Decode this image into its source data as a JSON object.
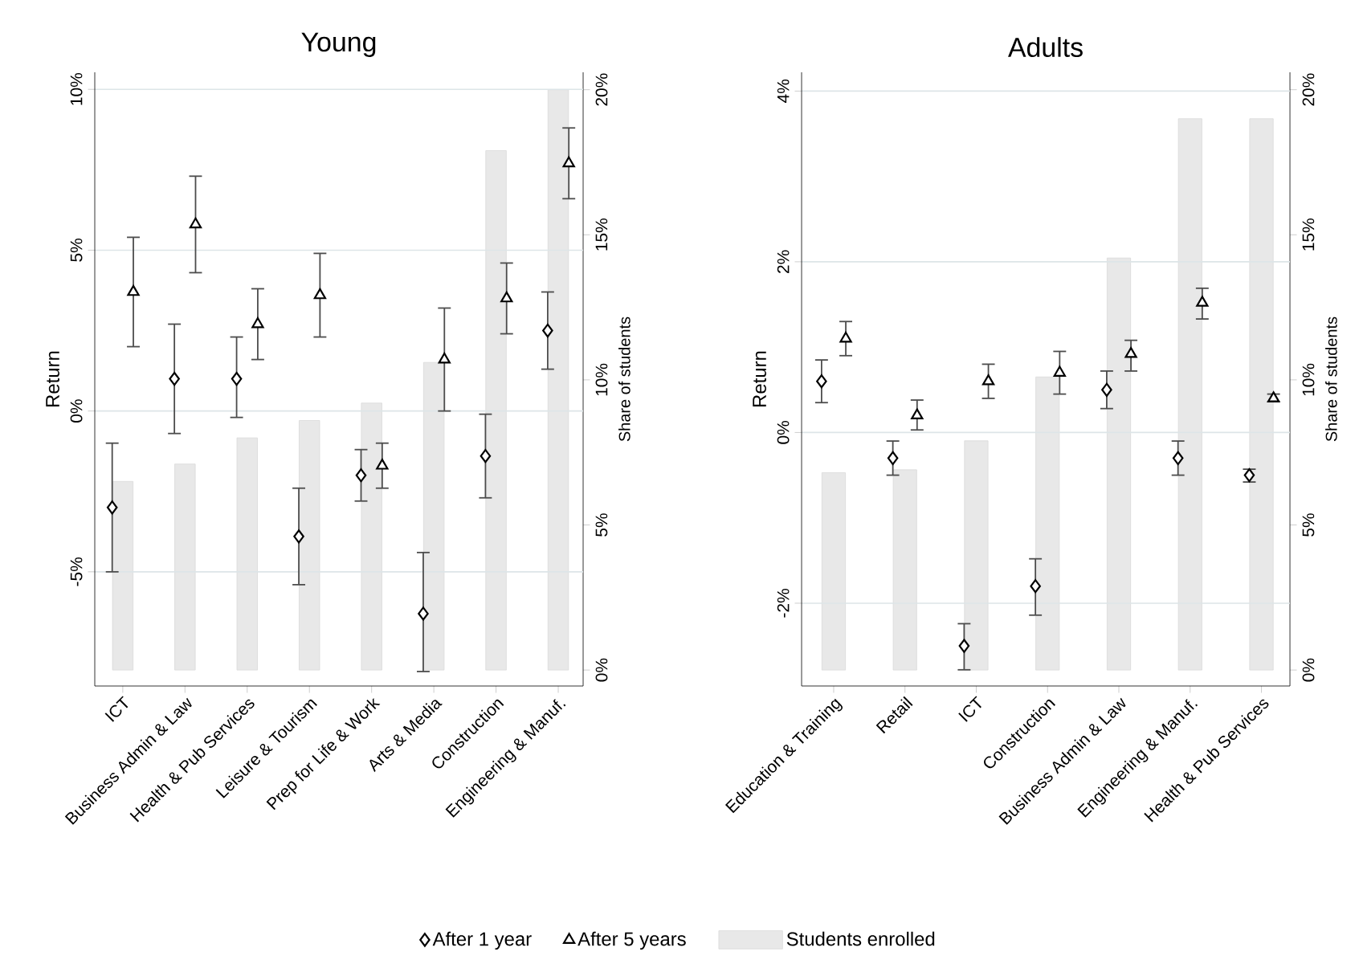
{
  "chart_data": [
    {
      "type": "scatter",
      "title": "Young",
      "ylabel": "Return",
      "y2label": "Share of students",
      "categories": [
        "ICT",
        "Business Admin & Law",
        "Health & Pub Services",
        "Leisure & Tourism",
        "Prep for Life & Work",
        "Arts & Media",
        "Construction",
        "Engineering & Manuf."
      ],
      "ylim": [
        -8.55,
        10.53
      ],
      "yticks": [
        {
          "value": -5,
          "label": "-5%"
        },
        {
          "value": 0,
          "label": "0%"
        },
        {
          "value": 5,
          "label": "5%"
        },
        {
          "value": 10,
          "label": "10%"
        }
      ],
      "y2lim": [
        -0.55,
        20.6
      ],
      "y2ticks": [
        {
          "value": 0,
          "label": "0%"
        },
        {
          "value": 5,
          "label": "5%"
        },
        {
          "value": 10,
          "label": "10%"
        },
        {
          "value": 15,
          "label": "15%"
        },
        {
          "value": 20,
          "label": "20%"
        }
      ],
      "grid": "y",
      "legend": "bottom",
      "series": [
        {
          "name": "After 1 year",
          "color": "#000000",
          "marker": "diamond",
          "values": [
            -3.0,
            1.0,
            1.0,
            -3.9,
            -2.0,
            -6.3,
            -1.4,
            2.5
          ],
          "errors": [
            [
              -5.0,
              -1.0
            ],
            [
              -0.7,
              2.7
            ],
            [
              -0.2,
              2.3
            ],
            [
              -5.4,
              -2.4
            ],
            [
              -2.8,
              -1.2
            ],
            [
              -8.1,
              -4.4
            ],
            [
              -2.7,
              -0.1
            ],
            [
              1.3,
              3.7
            ]
          ]
        },
        {
          "name": "After 5 years",
          "color": "#000000",
          "marker": "triangle",
          "values": [
            3.7,
            5.8,
            2.7,
            3.6,
            -1.7,
            1.6,
            3.5,
            7.7
          ],
          "errors": [
            [
              2.0,
              5.4
            ],
            [
              4.3,
              7.3
            ],
            [
              1.6,
              3.8
            ],
            [
              2.3,
              4.9
            ],
            [
              -2.4,
              -1.0
            ],
            [
              0.0,
              3.2
            ],
            [
              2.4,
              4.6
            ],
            [
              6.6,
              8.8
            ]
          ]
        },
        {
          "name": "Students enrolled",
          "type": "bar",
          "axis": "y2",
          "color": "#e8e8e8",
          "values": [
            6.5,
            7.1,
            8.0,
            8.6,
            9.2,
            10.6,
            17.9,
            20.0
          ]
        }
      ]
    },
    {
      "type": "scatter",
      "title": "Adults",
      "ylabel": "Return",
      "y2label": "Share of students",
      "categories": [
        "Education & Training",
        "Retail",
        "ICT",
        "Construction",
        "Business Admin & Law",
        "Engineering & Manuf.",
        "Health & Pub Services"
      ],
      "ylim": [
        -2.97,
        4.22
      ],
      "yticks": [
        {
          "value": -2,
          "label": "-2%"
        },
        {
          "value": 0,
          "label": "0%"
        },
        {
          "value": 2,
          "label": "2%"
        },
        {
          "value": 4,
          "label": "4%"
        }
      ],
      "y2lim": [
        -0.55,
        20.6
      ],
      "y2ticks": [
        {
          "value": 0,
          "label": "0%"
        },
        {
          "value": 5,
          "label": "5%"
        },
        {
          "value": 10,
          "label": "10%"
        },
        {
          "value": 15,
          "label": "15%"
        },
        {
          "value": 20,
          "label": "20%"
        }
      ],
      "grid": "y",
      "series": [
        {
          "color": "#000000",
          "marker": "diamond",
          "values": [
            0.6,
            -0.3,
            -2.5,
            -1.8,
            0.5,
            -0.3,
            -0.5
          ],
          "errors": [
            [
              0.35,
              0.85
            ],
            [
              -0.5,
              -0.1
            ],
            [
              -2.78,
              -2.24
            ],
            [
              -2.14,
              -1.48
            ],
            [
              0.28,
              0.72
            ],
            [
              -0.5,
              -0.1
            ],
            [
              -0.58,
              -0.43
            ]
          ]
        },
        {
          "color": "#000000",
          "marker": "triangle",
          "values": [
            1.1,
            0.2,
            0.6,
            0.7,
            0.92,
            1.52,
            0.4
          ],
          "errors": [
            [
              0.9,
              1.3
            ],
            [
              0.03,
              0.38
            ],
            [
              0.4,
              0.8
            ],
            [
              0.45,
              0.95
            ],
            [
              0.72,
              1.08
            ],
            [
              1.33,
              1.69
            ],
            [
              0.36,
              0.45
            ]
          ]
        },
        {
          "type": "bar",
          "axis": "y2",
          "color": "#e8e8e8",
          "values": [
            6.8,
            6.9,
            7.9,
            10.1,
            14.2,
            19.0,
            19.0
          ]
        }
      ]
    }
  ]
}
